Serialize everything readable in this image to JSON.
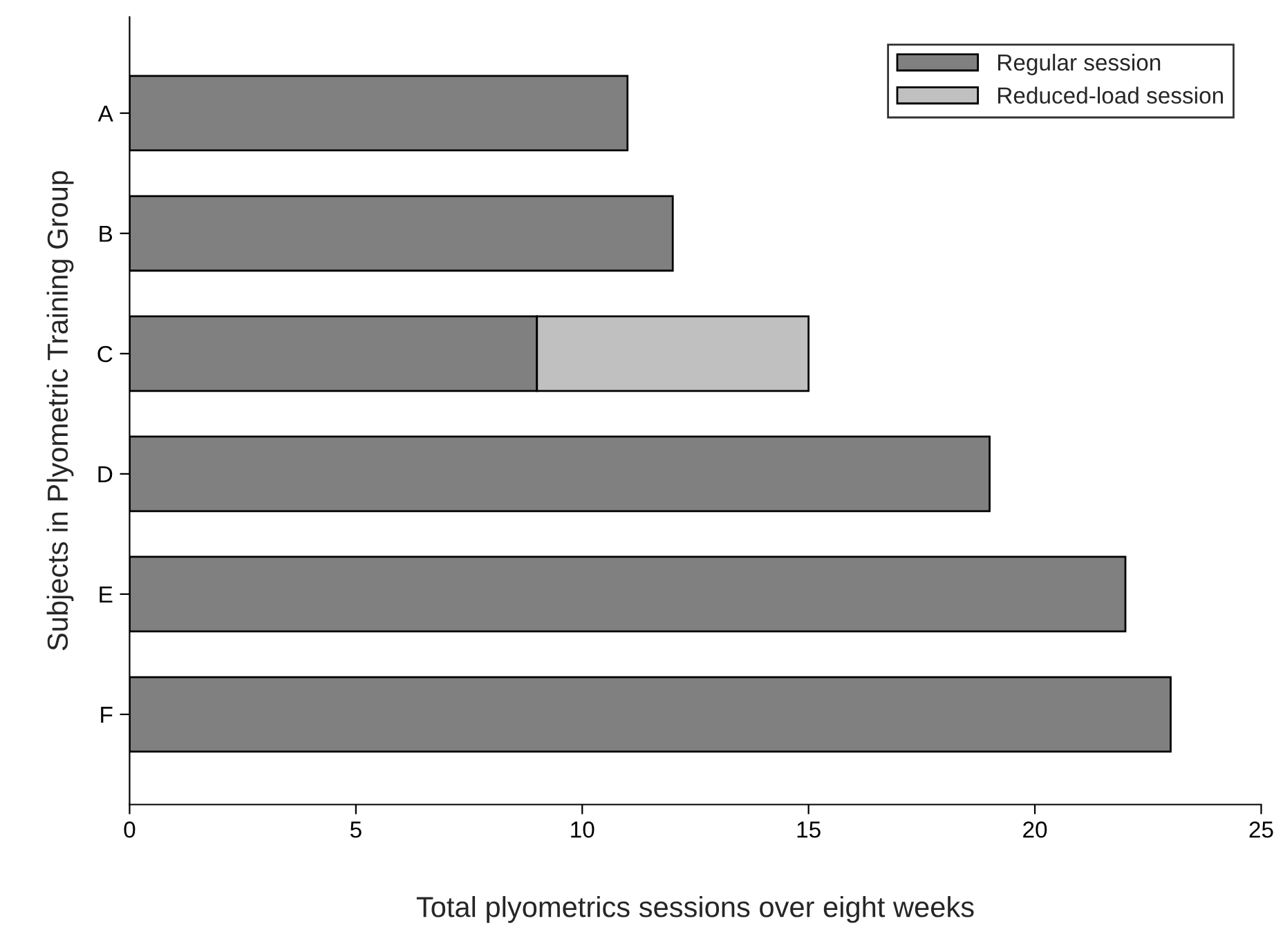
{
  "chart_data": {
    "type": "bar",
    "orientation": "horizontal",
    "stacked": true,
    "xlabel": "Total plyometrics sessions over eight weeks",
    "ylabel": "Subjects in Plyometric Training Group",
    "categories": [
      "A",
      "B",
      "C",
      "D",
      "E",
      "F"
    ],
    "series": [
      {
        "name": "Regular session",
        "color": "#808080",
        "values": [
          11,
          12,
          9,
          19,
          22,
          23
        ]
      },
      {
        "name": "Reduced-load session",
        "color": "#c0c0c0",
        "values": [
          null,
          null,
          6,
          null,
          null,
          null
        ]
      }
    ],
    "xlim": [
      0,
      25
    ],
    "xticks": [
      0,
      5,
      10,
      15,
      20,
      25
    ],
    "grid": false,
    "legend": "top right"
  }
}
